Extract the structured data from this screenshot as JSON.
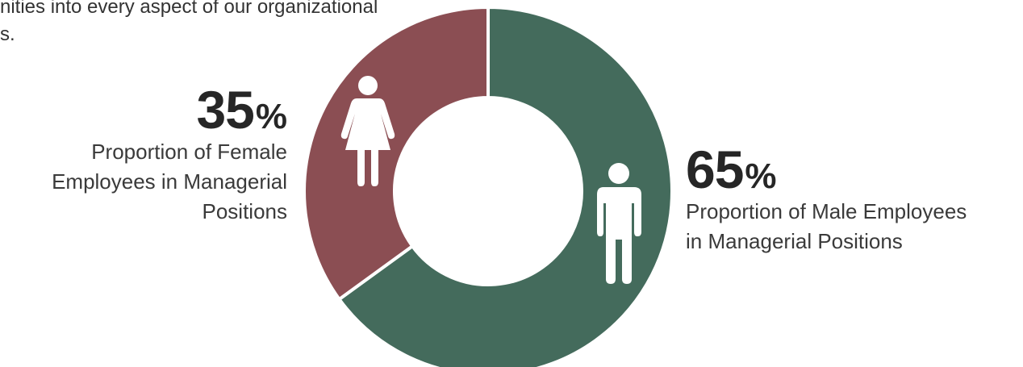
{
  "intro": {
    "text": "nities into every aspect of our organizational\ns."
  },
  "chart_data": {
    "type": "pie",
    "donut": true,
    "title": "",
    "unit": "%",
    "slices": [
      {
        "name": "Proportion of Male Employees in Managerial Positions",
        "value": 65,
        "color": "#446b5c",
        "icon": "male-person-icon"
      },
      {
        "name": "Proportion of Female Employees in Managerial Positions",
        "value": 35,
        "color": "#8b4e53",
        "icon": "female-person-icon"
      }
    ]
  },
  "female_stat": {
    "value": "35",
    "unit": "%",
    "label": "Proportion of Female\nEmployees in Managerial\nPositions"
  },
  "male_stat": {
    "value": "65",
    "unit": "%",
    "label": "Proportion of Male Employees\nin Managerial Positions"
  }
}
